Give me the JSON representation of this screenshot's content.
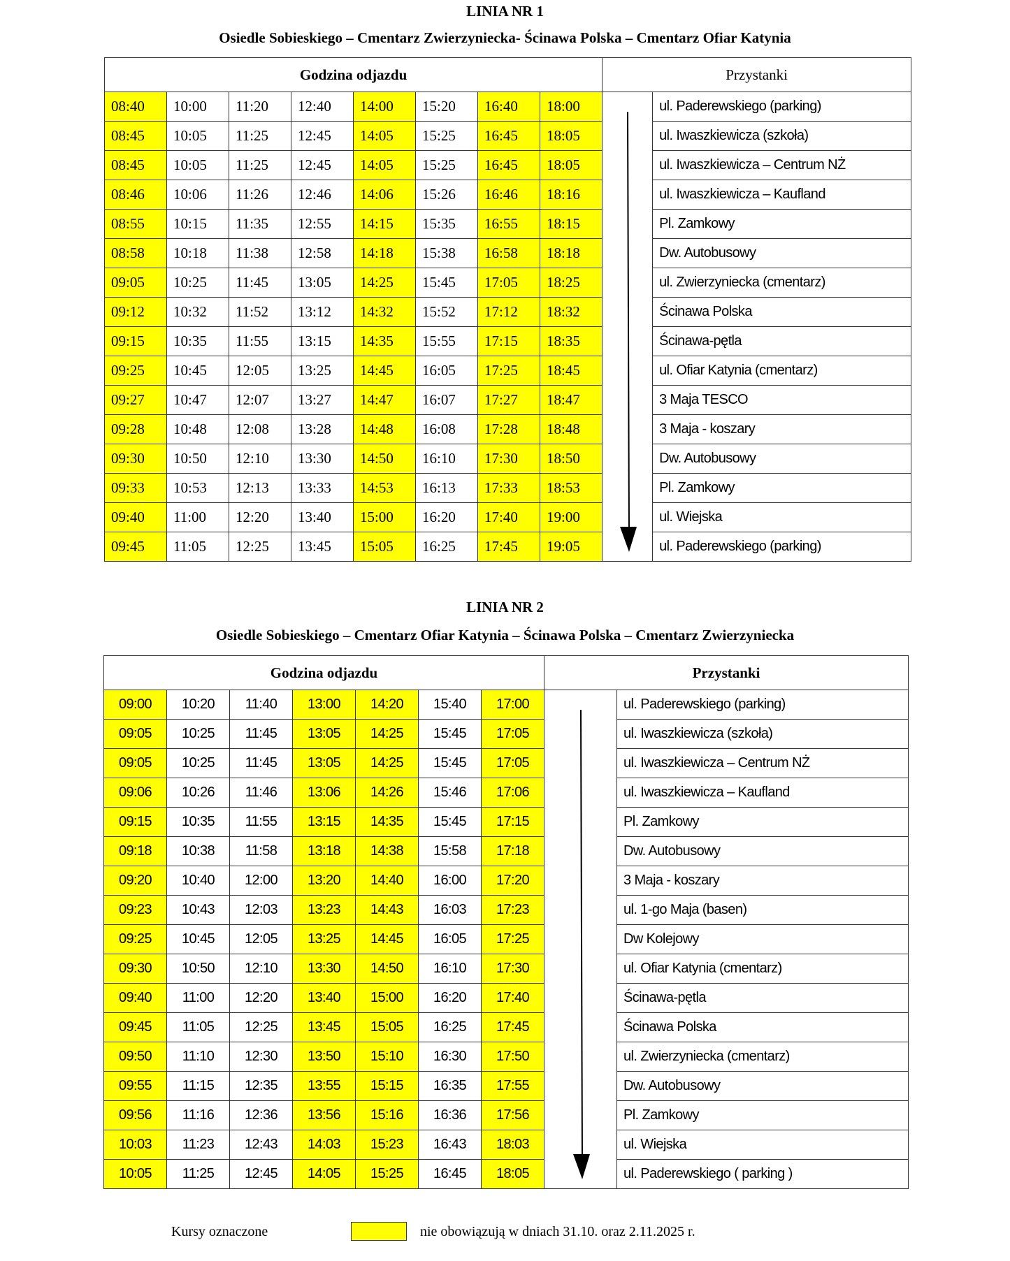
{
  "highlight_color": "#ffff00",
  "lines": [
    {
      "title": "LINIA NR 1",
      "route": "Osiedle Sobieskiego – Cmentarz Zwierzyniecka- Ścinawa Polska – Cmentarz Ofiar Katynia",
      "header_times": "Godzina odjazdu",
      "header_stops": "Przystanki",
      "highlighted_columns": [
        0,
        4,
        6,
        7
      ],
      "rows": [
        [
          "08:40",
          "10:00",
          "11:20",
          "12:40",
          "14:00",
          "15:20",
          "16:40",
          "18:00"
        ],
        [
          "08:45",
          "10:05",
          "11:25",
          "12:45",
          "14:05",
          "15:25",
          "16:45",
          "18:05"
        ],
        [
          "08:45",
          "10:05",
          "11:25",
          "12:45",
          "14:05",
          "15:25",
          "16:45",
          "18:05"
        ],
        [
          "08:46",
          "10:06",
          "11:26",
          "12:46",
          "14:06",
          "15:26",
          "16:46",
          "18:16"
        ],
        [
          "08:55",
          "10:15",
          "11:35",
          "12:55",
          "14:15",
          "15:35",
          "16:55",
          "18:15"
        ],
        [
          "08:58",
          "10:18",
          "11:38",
          "12:58",
          "14:18",
          "15:38",
          "16:58",
          "18:18"
        ],
        [
          "09:05",
          "10:25",
          "11:45",
          "13:05",
          "14:25",
          "15:45",
          "17:05",
          "18:25"
        ],
        [
          "09:12",
          "10:32",
          "11:52",
          "13:12",
          "14:32",
          "15:52",
          "17:12",
          "18:32"
        ],
        [
          "09:15",
          "10:35",
          "11:55",
          "13:15",
          "14:35",
          "15:55",
          "17:15",
          "18:35"
        ],
        [
          "09:25",
          "10:45",
          "12:05",
          "13:25",
          "14:45",
          "16:05",
          "17:25",
          "18:45"
        ],
        [
          "09:27",
          "10:47",
          "12:07",
          "13:27",
          "14:47",
          "16:07",
          "17:27",
          "18:47"
        ],
        [
          "09:28",
          "10:48",
          "12:08",
          "13:28",
          "14:48",
          "16:08",
          "17:28",
          "18:48"
        ],
        [
          "09:30",
          "10:50",
          "12:10",
          "13:30",
          "14:50",
          "16:10",
          "17:30",
          "18:50"
        ],
        [
          "09:33",
          "10:53",
          "12:13",
          "13:33",
          "14:53",
          "16:13",
          "17:33",
          "18:53"
        ],
        [
          "09:40",
          "11:00",
          "12:20",
          "13:40",
          "15:00",
          "16:20",
          "17:40",
          "19:00"
        ],
        [
          "09:45",
          "11:05",
          "12:25",
          "13:45",
          "15:05",
          "16:25",
          "17:45",
          "19:05"
        ]
      ],
      "stops": [
        "ul. Paderewskiego (parking)",
        "ul. Iwaszkiewicza (szkoła)",
        "ul. Iwaszkiewicza – Centrum NŻ",
        "ul. Iwaszkiewicza – Kaufland",
        "Pl. Zamkowy",
        "Dw. Autobusowy",
        "ul. Zwierzyniecka (cmentarz)",
        "Ścinawa Polska",
        "Ścinawa-pętla",
        "ul. Ofiar Katynia (cmentarz)",
        "3 Maja TESCO",
        "3 Maja - koszary",
        "Dw. Autobusowy",
        "Pl. Zamkowy",
        "ul. Wiejska",
        "ul. Paderewskiego (parking)"
      ]
    },
    {
      "title": "LINIA NR 2",
      "route": "Osiedle Sobieskiego – Cmentarz Ofiar Katynia – Ścinawa Polska – Cmentarz Zwierzyniecka",
      "header_times": "Godzina odjazdu",
      "header_stops": "Przystanki",
      "highlighted_columns": [
        0,
        3,
        4,
        6
      ],
      "rows": [
        [
          "09:00",
          "10:20",
          "11:40",
          "13:00",
          "14:20",
          "15:40",
          "17:00"
        ],
        [
          "09:05",
          "10:25",
          "11:45",
          "13:05",
          "14:25",
          "15:45",
          "17:05"
        ],
        [
          "09:05",
          "10:25",
          "11:45",
          "13:05",
          "14:25",
          "15:45",
          "17:05"
        ],
        [
          "09:06",
          "10:26",
          "11:46",
          "13:06",
          "14:26",
          "15:46",
          "17:06"
        ],
        [
          "09:15",
          "10:35",
          "11:55",
          "13:15",
          "14:35",
          "15:45",
          "17:15"
        ],
        [
          "09:18",
          "10:38",
          "11:58",
          "13:18",
          "14:38",
          "15:58",
          "17:18"
        ],
        [
          "09:20",
          "10:40",
          "12:00",
          "13:20",
          "14:40",
          "16:00",
          "17:20"
        ],
        [
          "09:23",
          "10:43",
          "12:03",
          "13:23",
          "14:43",
          "16:03",
          "17:23"
        ],
        [
          "09:25",
          "10:45",
          "12:05",
          "13:25",
          "14:45",
          "16:05",
          "17:25"
        ],
        [
          "09:30",
          "10:50",
          "12:10",
          "13:30",
          "14:50",
          "16:10",
          "17:30"
        ],
        [
          "09:40",
          "11:00",
          "12:20",
          "13:40",
          "15:00",
          "16:20",
          "17:40"
        ],
        [
          "09:45",
          "11:05",
          "12:25",
          "13:45",
          "15:05",
          "16:25",
          "17:45"
        ],
        [
          "09:50",
          "11:10",
          "12:30",
          "13:50",
          "15:10",
          "16:30",
          "17:50"
        ],
        [
          "09:55",
          "11:15",
          "12:35",
          "13:55",
          "15:15",
          "16:35",
          "17:55"
        ],
        [
          "09:56",
          "11:16",
          "12:36",
          "13:56",
          "15:16",
          "16:36",
          "17:56"
        ],
        [
          "10:03",
          "11:23",
          "12:43",
          "14:03",
          "15:23",
          "16:43",
          "18:03"
        ],
        [
          "10:05",
          "11:25",
          "12:45",
          "14:05",
          "15:25",
          "16:45",
          "18:05"
        ]
      ],
      "stops": [
        "ul. Paderewskiego (parking)",
        "ul. Iwaszkiewicza (szkoła)",
        "ul. Iwaszkiewicza – Centrum NŻ",
        "ul. Iwaszkiewicza – Kaufland",
        "Pl. Zamkowy",
        "Dw. Autobusowy",
        "3 Maja - koszary",
        "ul. 1-go Maja (basen)",
        "Dw Kolejowy",
        "ul. Ofiar Katynia (cmentarz)",
        "Ścinawa-pętla",
        "Ścinawa Polska",
        "ul. Zwierzyniecka (cmentarz)",
        "Dw. Autobusowy",
        "Pl. Zamkowy",
        "ul. Wiejska",
        "ul. Paderewskiego ( parking )"
      ]
    }
  ],
  "legend": {
    "prefix": "Kursy oznaczone",
    "suffix": "nie obowiązują w dniach 31.10. oraz 2.11.2025 r."
  }
}
